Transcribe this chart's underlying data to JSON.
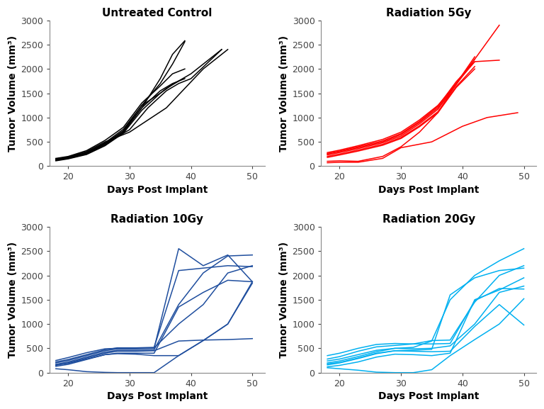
{
  "title_fontsize": 11,
  "axis_label_fontsize": 10,
  "tick_fontsize": 9,
  "xlabel": "Days Post Implant",
  "ylabel": "Tumor Volume (mm³)",
  "xlim": [
    17,
    52
  ],
  "ylim": [
    0,
    3000
  ],
  "xticks": [
    20,
    30,
    40,
    50
  ],
  "yticks": [
    0,
    500,
    1000,
    1500,
    2000,
    2500,
    3000
  ],
  "panels": [
    {
      "title": "Untreated Control",
      "color": "#000000",
      "series": [
        {
          "x": [
            18,
            20,
            23,
            26,
            29,
            32,
            35,
            37,
            39
          ],
          "y": [
            130,
            160,
            250,
            430,
            700,
            1200,
            1800,
            2300,
            2580
          ]
        },
        {
          "x": [
            18,
            20,
            23,
            26,
            29,
            32,
            35,
            37,
            39
          ],
          "y": [
            140,
            170,
            260,
            450,
            730,
            1250,
            1700,
            2100,
            2560
          ]
        },
        {
          "x": [
            18,
            20,
            23,
            26,
            29,
            32,
            35,
            37,
            40,
            45
          ],
          "y": [
            150,
            180,
            280,
            480,
            760,
            1250,
            1500,
            1680,
            1900,
            2400
          ]
        },
        {
          "x": [
            18,
            20,
            23,
            26,
            30,
            33,
            36,
            38,
            40,
            45
          ],
          "y": [
            120,
            160,
            270,
            460,
            750,
            1200,
            1550,
            1700,
            1800,
            2400
          ]
        },
        {
          "x": [
            18,
            20,
            23,
            26,
            29,
            32,
            35,
            37,
            39
          ],
          "y": [
            160,
            200,
            320,
            530,
            800,
            1300,
            1650,
            1900,
            2000
          ]
        },
        {
          "x": [
            18,
            20,
            23,
            26,
            29,
            32,
            35,
            36,
            38
          ],
          "y": [
            110,
            150,
            240,
            420,
            680,
            1150,
            1500,
            1600,
            1750
          ]
        },
        {
          "x": [
            18,
            20,
            23,
            26,
            29,
            32,
            35,
            37,
            39
          ],
          "y": [
            135,
            175,
            280,
            470,
            720,
            1200,
            1550,
            1700,
            1800
          ]
        },
        {
          "x": [
            18,
            20,
            23,
            26,
            30,
            36,
            42,
            46
          ],
          "y": [
            150,
            190,
            300,
            500,
            700,
            1200,
            2000,
            2400
          ]
        }
      ]
    },
    {
      "title": "Radiation 5Gy",
      "color": "#ff0000",
      "series": [
        {
          "x": [
            18,
            20,
            23,
            27,
            30,
            33,
            36,
            39,
            42,
            46
          ],
          "y": [
            250,
            300,
            380,
            500,
            650,
            900,
            1200,
            1700,
            2200,
            2900
          ]
        },
        {
          "x": [
            18,
            20,
            23,
            27,
            30,
            33,
            36,
            39,
            42
          ],
          "y": [
            280,
            330,
            420,
            550,
            700,
            950,
            1250,
            1700,
            2250
          ]
        },
        {
          "x": [
            18,
            20,
            23,
            27,
            30,
            33,
            36,
            39,
            42
          ],
          "y": [
            230,
            280,
            360,
            480,
            620,
            870,
            1170,
            1680,
            2200
          ]
        },
        {
          "x": [
            18,
            20,
            23,
            27,
            30,
            33,
            36,
            39,
            42
          ],
          "y": [
            200,
            250,
            330,
            450,
            590,
            830,
            1120,
            1640,
            2050
          ]
        },
        {
          "x": [
            18,
            20,
            23,
            27,
            30,
            33,
            36,
            39,
            42
          ],
          "y": [
            260,
            310,
            400,
            520,
            670,
            920,
            1230,
            1740,
            2150
          ]
        },
        {
          "x": [
            18,
            20,
            23,
            27,
            30,
            33,
            36,
            39,
            42
          ],
          "y": [
            180,
            230,
            310,
            430,
            570,
            810,
            1100,
            1620,
            2000
          ]
        },
        {
          "x": [
            18,
            20,
            23,
            27,
            30,
            33,
            36,
            39,
            42,
            46
          ],
          "y": [
            100,
            110,
            100,
            200,
            400,
            700,
            1100,
            1700,
            2150,
            2180
          ]
        },
        {
          "x": [
            18,
            20,
            23,
            27,
            30,
            35,
            40,
            44,
            49
          ],
          "y": [
            70,
            80,
            80,
            160,
            380,
            500,
            820,
            1000,
            1100
          ]
        }
      ]
    },
    {
      "title": "Radiation 10Gy",
      "color": "#1f4e9e",
      "series": [
        {
          "x": [
            18,
            20,
            23,
            26,
            28,
            31,
            34,
            38,
            42,
            46,
            50
          ],
          "y": [
            200,
            250,
            350,
            450,
            490,
            490,
            500,
            2550,
            2200,
            2420,
            1870
          ]
        },
        {
          "x": [
            18,
            20,
            23,
            26,
            28,
            31,
            34,
            38,
            42,
            46,
            50
          ],
          "y": [
            220,
            270,
            370,
            470,
            510,
            510,
            520,
            2100,
            2150,
            2200,
            2180
          ]
        },
        {
          "x": [
            18,
            20,
            23,
            26,
            28,
            31,
            34,
            38,
            42,
            46,
            50
          ],
          "y": [
            170,
            220,
            320,
            420,
            460,
            460,
            470,
            1400,
            2050,
            2400,
            2420
          ]
        },
        {
          "x": [
            18,
            20,
            23,
            26,
            28,
            31,
            34,
            38,
            42,
            46,
            50
          ],
          "y": [
            250,
            310,
            410,
            490,
            500,
            500,
            510,
            1000,
            1400,
            2050,
            2200
          ]
        },
        {
          "x": [
            18,
            20,
            23,
            26,
            28,
            31,
            34,
            38,
            42,
            46,
            50
          ],
          "y": [
            150,
            200,
            300,
            400,
            440,
            440,
            450,
            650,
            670,
            680,
            700
          ]
        },
        {
          "x": [
            18,
            20,
            23,
            26,
            28,
            31,
            34,
            38,
            42,
            46,
            50
          ],
          "y": [
            130,
            170,
            270,
            370,
            390,
            380,
            350,
            350,
            660,
            1000,
            1870
          ]
        },
        {
          "x": [
            18,
            20,
            23,
            26,
            28,
            31,
            34,
            38,
            42,
            46,
            50
          ],
          "y": [
            80,
            60,
            20,
            5,
            0,
            0,
            0,
            350,
            660,
            1000,
            1840
          ]
        },
        {
          "x": [
            18,
            20,
            23,
            26,
            28,
            31,
            34,
            38,
            42,
            46,
            50
          ],
          "y": [
            160,
            190,
            280,
            370,
            400,
            400,
            400,
            1350,
            1650,
            1900,
            1870
          ]
        }
      ]
    },
    {
      "title": "Radiation 20Gy",
      "color": "#00b0f0",
      "series": [
        {
          "x": [
            18,
            20,
            23,
            26,
            29,
            32,
            35,
            38,
            42,
            46,
            50
          ],
          "y": [
            200,
            240,
            330,
            430,
            500,
            520,
            650,
            1500,
            2000,
            2300,
            2550
          ]
        },
        {
          "x": [
            18,
            20,
            23,
            26,
            29,
            32,
            35,
            38,
            42,
            46,
            50
          ],
          "y": [
            280,
            330,
            440,
            530,
            560,
            590,
            660,
            670,
            1450,
            2000,
            2200
          ]
        },
        {
          "x": [
            18,
            20,
            23,
            26,
            29,
            32,
            35,
            38,
            42,
            46,
            50
          ],
          "y": [
            120,
            150,
            220,
            320,
            380,
            370,
            350,
            400,
            1500,
            1700,
            1950
          ]
        },
        {
          "x": [
            18,
            20,
            23,
            26,
            29,
            32,
            35,
            38,
            42,
            46,
            50
          ],
          "y": [
            160,
            200,
            290,
            390,
            450,
            460,
            480,
            1600,
            1950,
            2100,
            2150
          ]
        },
        {
          "x": [
            18,
            20,
            23,
            26,
            29,
            32,
            35,
            38,
            42,
            46,
            50
          ],
          "y": [
            350,
            400,
            500,
            580,
            600,
            590,
            590,
            600,
            1480,
            1730,
            1720
          ]
        },
        {
          "x": [
            18,
            20,
            23,
            26,
            29,
            32,
            35,
            38,
            42,
            46,
            50
          ],
          "y": [
            100,
            80,
            50,
            10,
            0,
            0,
            60,
            350,
            680,
            1000,
            1520
          ]
        },
        {
          "x": [
            18,
            20,
            23,
            26,
            29,
            32,
            35,
            38,
            42,
            46,
            50
          ],
          "y": [
            240,
            280,
            370,
            460,
            500,
            490,
            500,
            550,
            1000,
            1650,
            1780
          ]
        },
        {
          "x": [
            18,
            20,
            23,
            26,
            29,
            32,
            35,
            38,
            42,
            46,
            50
          ],
          "y": [
            180,
            210,
            300,
            400,
            450,
            440,
            430,
            440,
            950,
            1400,
            980
          ]
        }
      ]
    }
  ]
}
